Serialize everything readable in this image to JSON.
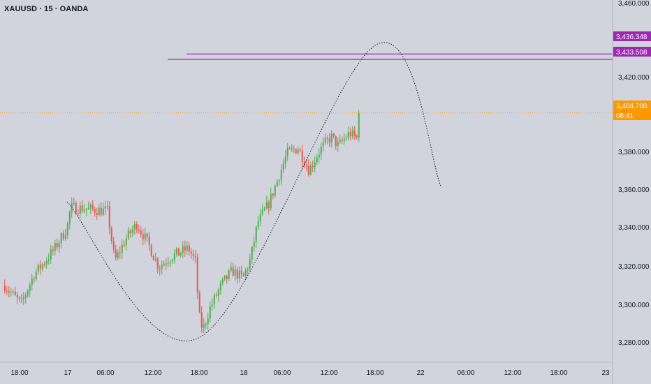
{
  "header": {
    "symbol_title": "XAUUSD · 15 · OANDA"
  },
  "colors": {
    "background": "#d1d4dc",
    "up_candle": "#4caf50",
    "down_candle": "#ef5350",
    "resistance_line": "#9c27b0",
    "current_price": "#ff9800",
    "axis_text": "#131722",
    "projection_curve": "#131722"
  },
  "price_axis": {
    "ticks": [
      "3,460.000",
      "3,420.000",
      "3,380.000",
      "3,360.000",
      "3,340.000",
      "3,320.000",
      "3,300.000",
      "3,280.000"
    ],
    "labels": [
      {
        "text": "3,436.348",
        "kind": "resistance"
      },
      {
        "text": "3,433.508",
        "kind": "resistance"
      },
      {
        "text": "3,404.700",
        "kind": "current",
        "countdown": "08:41"
      }
    ]
  },
  "time_axis": {
    "ticks": [
      "18:00",
      "17",
      "06:00",
      "12:00",
      "18:00",
      "18",
      "06:00",
      "12:00",
      "18:00",
      "22",
      "06:00",
      "12:00",
      "18:00",
      "23"
    ]
  },
  "chart_data": {
    "type": "candlestick",
    "symbol": "XAUUSD",
    "interval": "15",
    "broker": "OANDA",
    "ylim": [
      3270,
      3465
    ],
    "current_price": 3404.7,
    "horizontal_lines": [
      {
        "price": 3436.348
      },
      {
        "price": 3433.508
      }
    ],
    "projection_curve": {
      "style": "dotted",
      "points": [
        {
          "time": "17 00:00",
          "price": 3357
        },
        {
          "time": "17 18:00",
          "price": 3284
        },
        {
          "time": "18 18:00",
          "price": 3441
        },
        {
          "time": "22 03:00",
          "price": 3365
        }
      ]
    },
    "price_path": [
      {
        "time": "16 15:30",
        "price": 3312
      },
      {
        "time": "16 17:45",
        "price": 3302
      },
      {
        "time": "16 19:30",
        "price": 3318
      },
      {
        "time": "16 21:00",
        "price": 3325
      },
      {
        "time": "16 22:30",
        "price": 3333
      },
      {
        "time": "17 00:00",
        "price": 3343
      },
      {
        "time": "17 00:30",
        "price": 3354
      },
      {
        "time": "17 03:00",
        "price": 3353
      },
      {
        "time": "17 05:30",
        "price": 3352
      },
      {
        "time": "17 06:30",
        "price": 3325
      },
      {
        "time": "17 08:00",
        "price": 3337
      },
      {
        "time": "17 09:30",
        "price": 3345
      },
      {
        "time": "17 11:00",
        "price": 3335
      },
      {
        "time": "17 12:30",
        "price": 3322
      },
      {
        "time": "17 14:00",
        "price": 3327
      },
      {
        "time": "17 15:30",
        "price": 3330
      },
      {
        "time": "17 16:30",
        "price": 3332
      },
      {
        "time": "17 17:30",
        "price": 3325
      },
      {
        "time": "17 18:00",
        "price": 3296
      },
      {
        "time": "17 18:30",
        "price": 3288
      },
      {
        "time": "17 19:30",
        "price": 3300
      },
      {
        "time": "17 21:00",
        "price": 3312
      },
      {
        "time": "17 22:30",
        "price": 3320
      },
      {
        "time": "18 00:00",
        "price": 3316
      },
      {
        "time": "18 01:00",
        "price": 3326
      },
      {
        "time": "18 02:00",
        "price": 3346
      },
      {
        "time": "18 03:30",
        "price": 3356
      },
      {
        "time": "18 05:00",
        "price": 3372
      },
      {
        "time": "18 06:00",
        "price": 3383
      },
      {
        "time": "18 07:30",
        "price": 3386
      },
      {
        "time": "18 09:00",
        "price": 3374
      },
      {
        "time": "18 10:30",
        "price": 3385
      },
      {
        "time": "18 12:00",
        "price": 3392
      },
      {
        "time": "18 13:00",
        "price": 3387
      },
      {
        "time": "18 14:30",
        "price": 3394
      },
      {
        "time": "18 15:30",
        "price": 3391
      },
      {
        "time": "18 16:00",
        "price": 3405
      }
    ]
  }
}
